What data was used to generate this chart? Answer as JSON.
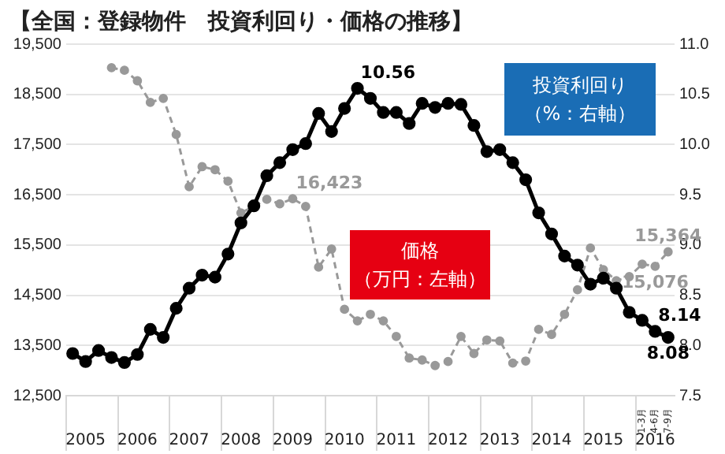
{
  "chart_data": {
    "type": "line",
    "title": "【全国：登録物件　投資利回り・価格の推移】",
    "categories": [
      null,
      "2005",
      null,
      null,
      null,
      "2006",
      null,
      null,
      null,
      "2007",
      null,
      null,
      null,
      "2008",
      null,
      null,
      null,
      "2009",
      null,
      null,
      null,
      "2010",
      null,
      null,
      null,
      "2011",
      null,
      null,
      null,
      "2012",
      null,
      null,
      null,
      "2013",
      null,
      null,
      null,
      "2014",
      null,
      null,
      null,
      "2015",
      null,
      null,
      "1-3月",
      "4-6月",
      "7-9月"
    ],
    "annotations": [
      "2016"
    ],
    "series": [
      {
        "name": "投資利回り（%：右軸）",
        "color": "#000000",
        "axis": "y2",
        "marker": "circle",
        "line_style": "solid",
        "values": [
          7.92,
          7.84,
          7.95,
          7.88,
          7.83,
          7.91,
          8.16,
          8.08,
          8.37,
          8.57,
          8.7,
          8.68,
          8.91,
          9.22,
          9.39,
          9.69,
          9.82,
          9.95,
          10.01,
          10.31,
          10.13,
          10.36,
          10.56,
          10.46,
          10.32,
          10.32,
          10.21,
          10.41,
          10.37,
          10.41,
          10.4,
          10.19,
          9.93,
          9.95,
          9.82,
          9.65,
          9.32,
          9.11,
          8.89,
          8.8,
          8.61,
          8.67,
          8.57,
          8.33,
          8.25,
          8.14,
          8.08
        ],
        "value_labels": [
          null,
          null,
          null,
          null,
          null,
          null,
          null,
          null,
          null,
          null,
          null,
          null,
          null,
          null,
          null,
          null,
          null,
          null,
          null,
          null,
          null,
          null,
          "10.56",
          null,
          null,
          null,
          null,
          null,
          null,
          null,
          null,
          null,
          null,
          null,
          null,
          null,
          null,
          null,
          null,
          null,
          null,
          null,
          null,
          null,
          null,
          "8.14",
          "8.08"
        ]
      },
      {
        "name": "価格（万円：左軸）",
        "color": "#999999",
        "marker": "circle",
        "line_style": "dashed",
        "values": [
          null,
          null,
          null,
          19030,
          18980,
          18770,
          18340,
          18420,
          17700,
          16660,
          17060,
          17000,
          16770,
          16140,
          16270,
          16410,
          16320,
          16423,
          16270,
          15060,
          15420,
          14220,
          13990,
          14120,
          13990,
          13680,
          13250,
          13210,
          13100,
          13180,
          13680,
          13340,
          13610,
          13590,
          13150,
          13190,
          13820,
          13720,
          14120,
          14610,
          15440,
          15010,
          14790,
          14870,
          15120,
          15076,
          15364
        ],
        "value_labels": [
          null,
          null,
          null,
          null,
          null,
          null,
          null,
          null,
          null,
          null,
          null,
          null,
          null,
          null,
          null,
          null,
          null,
          "16,423",
          null,
          null,
          null,
          null,
          null,
          null,
          null,
          null,
          null,
          null,
          null,
          null,
          null,
          null,
          null,
          null,
          null,
          null,
          null,
          null,
          null,
          null,
          null,
          null,
          null,
          null,
          null,
          "15,076",
          "15,364"
        ]
      }
    ],
    "ylim": [
      12500,
      19500
    ],
    "yticks": [
      {
        "value": 12500,
        "label": "12,500"
      },
      {
        "value": 13500,
        "label": "13,500"
      },
      {
        "value": 14500,
        "label": "14,500"
      },
      {
        "value": 15500,
        "label": "15,500"
      },
      {
        "value": 16500,
        "label": "16,500"
      },
      {
        "value": 17500,
        "label": "17,500"
      },
      {
        "value": 18500,
        "label": "18,500"
      },
      {
        "value": 19500,
        "label": "19,500"
      }
    ],
    "y2lim": [
      7.5,
      11
    ],
    "y2ticks": [
      7.5,
      {
        "value": 8,
        "label": "8.0"
      },
      8.5,
      {
        "value": 9,
        "label": "9.0"
      },
      9.5,
      {
        "value": 10,
        "label": "10.0"
      },
      10.5,
      {
        "value": 11,
        "label": "11.0"
      }
    ],
    "grid": "y",
    "legend": false
  }
}
